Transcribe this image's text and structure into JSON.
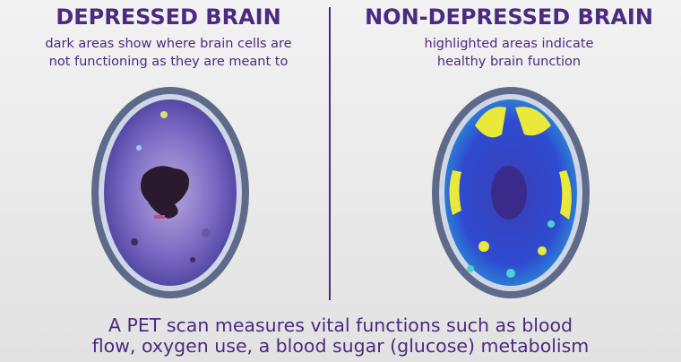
{
  "left": {
    "title": "DEPRESSED BRAIN",
    "subtitle": [
      "dark areas show where brain cells are",
      "not functioning as they are meant to"
    ]
  },
  "right": {
    "title": "NON-DEPRESSED BRAIN",
    "subtitle": [
      "highlighted areas indicate",
      "healthy brain function"
    ]
  },
  "caption": [
    "A PET scan measures vital functions such as blood",
    "flow, oxygen use, a blood sugar (glucose) metabolism"
  ]
}
